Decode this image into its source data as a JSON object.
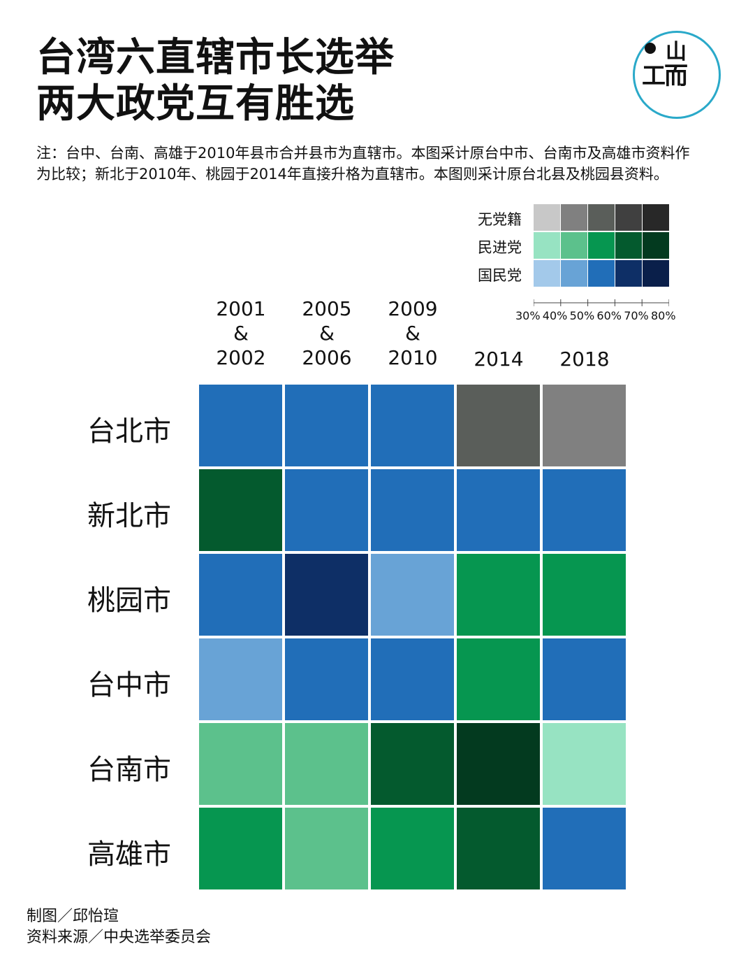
{
  "title_line1": "台湾六直辖市长选举",
  "title_line2": "两大政党互有胜选",
  "note": "注：台中、台南、高雄于2010年县市合并县市为直辖市。本图采计原台中市、台南市及高雄市资料作为比较；新北于2010年、桃园于2014年直接升格为直辖市。本图则采计原台北县及桃园县资料。",
  "logo": {
    "top": "山",
    "left": "工",
    "right": "而"
  },
  "chart_data": {
    "type": "heatmap",
    "title": "台湾六直辖市长选举 两大政党互有胜选",
    "x": [
      "2001\n&\n2002",
      "2005\n&\n2006",
      "2009\n&\n2010",
      "2014",
      "2018"
    ],
    "x_lines": [
      [
        "2001",
        "&",
        "2002"
      ],
      [
        "2005",
        "&",
        "2006"
      ],
      [
        "2009",
        "&",
        "2010"
      ],
      [
        "2014"
      ],
      [
        "2018"
      ]
    ],
    "y": [
      "台北市",
      "新北市",
      "桃园市",
      "台中市",
      "台南市",
      "高雄市"
    ],
    "legend": {
      "parties": [
        "无党籍",
        "民进党",
        "国民党"
      ],
      "bins": [
        "30%",
        "40%",
        "50%",
        "60%",
        "70%",
        "80%"
      ],
      "colors": {
        "无党籍": [
          "#c8c8c8",
          "#808080",
          "#5a5e5a",
          "#404040",
          "#282828"
        ],
        "民进党": [
          "#97e3c2",
          "#5cc18c",
          "#069650",
          "#045a2e",
          "#033a1f"
        ],
        "国民党": [
          "#a3c9ea",
          "#68a3d6",
          "#216eb8",
          "#0e2f66",
          "#0a1f4a"
        ]
      }
    },
    "cells": [
      [
        {
          "party": "国民党",
          "bin": "50-60%"
        },
        {
          "party": "国民党",
          "bin": "50-60%"
        },
        {
          "party": "国民党",
          "bin": "50-60%"
        },
        {
          "party": "无党籍",
          "bin": "50-60%"
        },
        {
          "party": "无党籍",
          "bin": "40-50%"
        }
      ],
      [
        {
          "party": "民进党",
          "bin": "60-70%"
        },
        {
          "party": "国民党",
          "bin": "50-60%"
        },
        {
          "party": "国民党",
          "bin": "50-60%"
        },
        {
          "party": "国民党",
          "bin": "50-60%"
        },
        {
          "party": "国民党",
          "bin": "50-60%"
        }
      ],
      [
        {
          "party": "国民党",
          "bin": "50-60%"
        },
        {
          "party": "国民党",
          "bin": "60-70%"
        },
        {
          "party": "国民党",
          "bin": "40-50%"
        },
        {
          "party": "民进党",
          "bin": "50-60%"
        },
        {
          "party": "民进党",
          "bin": "50-60%"
        }
      ],
      [
        {
          "party": "国民党",
          "bin": "40-50%"
        },
        {
          "party": "国民党",
          "bin": "50-60%"
        },
        {
          "party": "国民党",
          "bin": "50-60%"
        },
        {
          "party": "民进党",
          "bin": "50-60%"
        },
        {
          "party": "国民党",
          "bin": "50-60%"
        }
      ],
      [
        {
          "party": "民进党",
          "bin": "40-50%"
        },
        {
          "party": "民进党",
          "bin": "40-50%"
        },
        {
          "party": "民进党",
          "bin": "60-70%"
        },
        {
          "party": "民进党",
          "bin": "70-80%"
        },
        {
          "party": "民进党",
          "bin": "30-40%"
        }
      ],
      [
        {
          "party": "民进党",
          "bin": "50-60%"
        },
        {
          "party": "民进党",
          "bin": "40-50%"
        },
        {
          "party": "民进党",
          "bin": "50-60%"
        },
        {
          "party": "民进党",
          "bin": "60-70%"
        },
        {
          "party": "国民党",
          "bin": "50-60%"
        }
      ]
    ]
  },
  "credits": {
    "maker": "制图／邱怡瑄",
    "source": "资料来源／中央选举委员会"
  }
}
